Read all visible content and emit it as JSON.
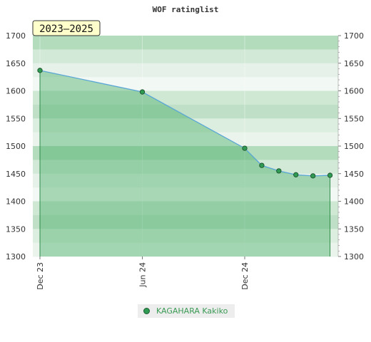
{
  "chart_data": {
    "type": "area",
    "title": "WOF ratinglist",
    "badge": "2023–2025",
    "ylim": [
      1300,
      1700
    ],
    "y_ticks": [
      1300,
      1350,
      1400,
      1450,
      1500,
      1550,
      1600,
      1650,
      1700
    ],
    "x_ticks": [
      "Dec 23",
      "Jun 24",
      "Dec 24"
    ],
    "series": [
      {
        "name": "KAGAHARA Kakiko",
        "points": [
          {
            "x": "2023-12",
            "y": 1637
          },
          {
            "x": "2024-06",
            "y": 1598
          },
          {
            "x": "2024-12",
            "y": 1496
          },
          {
            "x": "2025-01",
            "y": 1465
          },
          {
            "x": "2025-02",
            "y": 1455
          },
          {
            "x": "2025-03",
            "y": 1448
          },
          {
            "x": "2025-04",
            "y": 1446
          },
          {
            "x": "2025-05",
            "y": 1447
          }
        ]
      }
    ],
    "grid": true,
    "legend_position": "bottom",
    "colors": {
      "line": "#5aa6d6",
      "fill": "#4caf6a",
      "marker": "#2e9a52",
      "badge_bg": "#ffffcc"
    }
  }
}
